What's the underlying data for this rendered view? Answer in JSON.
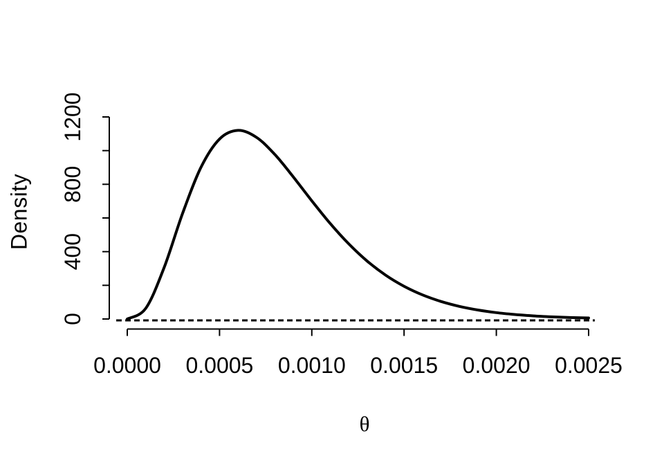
{
  "colors": {
    "foreground": "#000000",
    "background": "#ffffff"
  },
  "chart_data": {
    "type": "line",
    "title": "",
    "xlabel": "θ",
    "ylabel": "Density",
    "xlim": [
      0,
      0.0025
    ],
    "ylim": [
      0,
      1200
    ],
    "grid": false,
    "legend": null,
    "x_axis": {
      "tick_values": [
        0,
        0.0005,
        0.001,
        0.0015,
        0.002,
        0.0025
      ],
      "tick_labels": [
        "0.0000",
        "0.0005",
        "0.0010",
        "0.0015",
        "0.0020",
        "0.0025"
      ]
    },
    "y_axis": {
      "tick_values": [
        0,
        200,
        400,
        600,
        800,
        1000,
        1200
      ],
      "labeled_tick_values": [
        0,
        400,
        800,
        1200
      ],
      "tick_labels": [
        "0",
        "400",
        "800",
        "1200"
      ]
    },
    "series": [
      {
        "name": "density-curve",
        "type": "line",
        "style": "solid",
        "color": "#000000",
        "peak": {
          "x": 0.0006,
          "y": 1120
        },
        "x": [
          0.0,
          0.0001,
          0.0002,
          0.0003,
          0.0004,
          0.0005,
          0.0006,
          0.0007,
          0.0008,
          0.0009,
          0.001,
          0.0011,
          0.0012,
          0.0013,
          0.0014,
          0.0015,
          0.0016,
          0.0017,
          0.0018,
          0.0019,
          0.002,
          0.0021,
          0.0022,
          0.0023,
          0.0024,
          0.0025
        ],
        "y": [
          0,
          63.2,
          306.6,
          627.5,
          902.2,
          1068.8,
          1120.2,
          1078.9,
          976.8,
          843.6,
          701.9,
          566.6,
          446.2,
          344.1,
          260.6,
          194.5,
          143.1,
          104.1,
          75.0,
          53.5,
          37.8,
          26.6,
          18.5,
          12.8,
          8.8,
          6.1
        ]
      },
      {
        "name": "zero-reference-line",
        "type": "hline",
        "style": "dashed",
        "color": "#000000",
        "value": 0
      }
    ]
  }
}
